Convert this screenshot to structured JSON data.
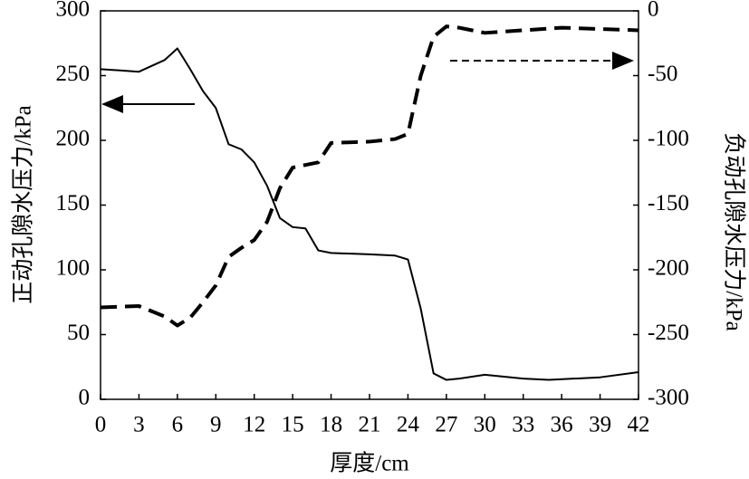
{
  "chart_data": {
    "type": "line",
    "x_label": "厚度/cm",
    "y_label": "正动孔隙水压力/kPa",
    "y2_label": "负动孔隙水压力/kPa",
    "xlim": [
      0,
      42
    ],
    "xticks": [
      0,
      3,
      6,
      9,
      12,
      15,
      18,
      21,
      24,
      27,
      30,
      33,
      36,
      39,
      42
    ],
    "ylim": [
      0,
      300
    ],
    "yticks": [
      0,
      50,
      100,
      150,
      200,
      250,
      300
    ],
    "y2lim": [
      -300,
      0
    ],
    "y2ticks": [
      -300,
      -250,
      -200,
      -150,
      -100,
      -50,
      0
    ],
    "series": [
      {
        "color": "#000000",
        "style": "solid",
        "axis": "y",
        "x": [
          0,
          3,
          5,
          6,
          7,
          8,
          9,
          10,
          11,
          12,
          13,
          14,
          15,
          16,
          17,
          18,
          21,
          23,
          24,
          25,
          26,
          27,
          28,
          30,
          33,
          35,
          39,
          42
        ],
        "values": [
          255,
          253,
          262,
          271,
          255,
          238,
          225,
          197,
          193,
          183,
          165,
          140,
          133,
          132,
          115,
          113,
          112,
          111,
          108,
          70,
          20,
          15,
          16,
          19,
          16,
          15,
          17,
          21
        ]
      },
      {
        "color": "#000000",
        "style": "dashed",
        "axis": "y2",
        "x": [
          0,
          3,
          5,
          6,
          7,
          8,
          9,
          10,
          11,
          12,
          13,
          14,
          15,
          16,
          17,
          18,
          21,
          23,
          24,
          25,
          26,
          27,
          28,
          30,
          33,
          36,
          39,
          42
        ],
        "values": [
          -229,
          -228,
          -236,
          -243,
          -237,
          -225,
          -212,
          -190,
          -183,
          -177,
          -163,
          -137,
          -121,
          -119,
          -117,
          -102,
          -101,
          -99,
          -95,
          -50,
          -20,
          -12,
          -13,
          -17,
          -15,
          -13,
          -14,
          -15
        ]
      }
    ]
  }
}
